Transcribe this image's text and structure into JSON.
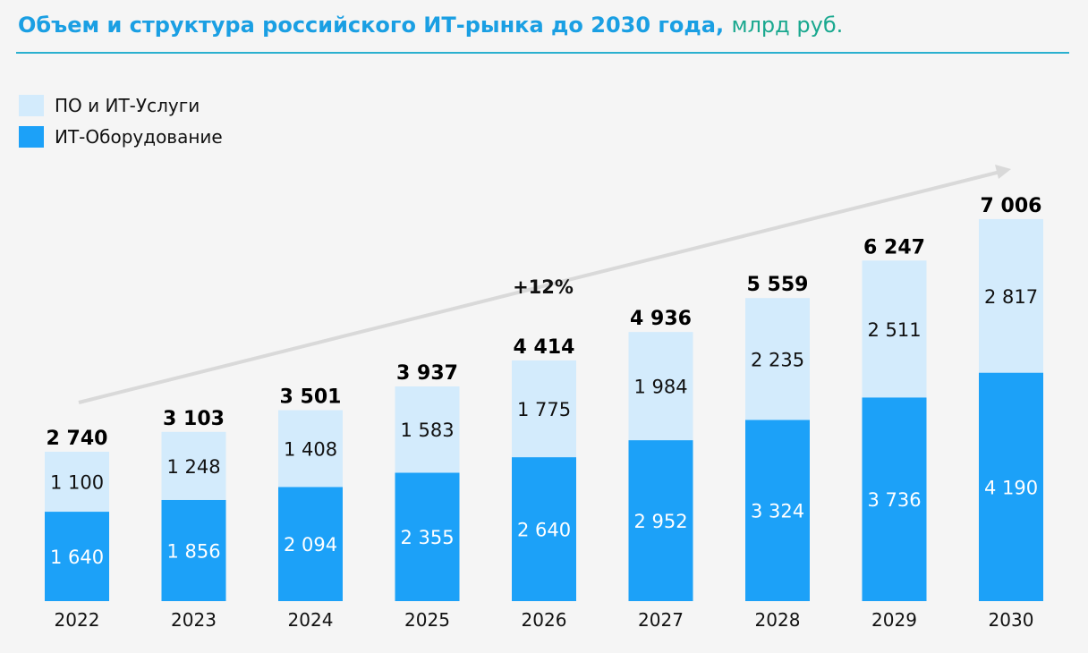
{
  "title": {
    "main": "Объем и структура российского ИТ-рынка до 2030 года,",
    "unit": "млрд руб."
  },
  "colors": {
    "services": "#d3ebfc",
    "hardware": "#1ca1f8",
    "arrow": "#d9d9d9",
    "title": "#1a9fe3"
  },
  "chart_data": {
    "type": "bar",
    "stacked": true,
    "categories": [
      "2022",
      "2023",
      "2024",
      "2025",
      "2026",
      "2027",
      "2028",
      "2029",
      "2030"
    ],
    "series": [
      {
        "name": "ИТ-Оборудование",
        "values": [
          1640,
          1856,
          2094,
          2355,
          2640,
          2952,
          3324,
          3736,
          4190
        ],
        "labels": [
          "1 640",
          "1 856",
          "2 094",
          "2 355",
          "2 640",
          "2 952",
          "3 324",
          "3 736",
          "4 190"
        ]
      },
      {
        "name": "ПО и ИТ-Услуги",
        "values": [
          1100,
          1248,
          1408,
          1583,
          1775,
          1984,
          2235,
          2511,
          2817
        ],
        "labels": [
          "1 100",
          "1 248",
          "1 408",
          "1 583",
          "1 775",
          "1 984",
          "2 235",
          "2 511",
          "2 817"
        ]
      }
    ],
    "totals": [
      2740,
      3103,
      3501,
      3937,
      4414,
      4936,
      5559,
      6247,
      7006
    ],
    "total_labels": [
      "2 740",
      "3 103",
      "3 501",
      "3 937",
      "4 414",
      "4 936",
      "5 559",
      "6 247",
      "7 006"
    ],
    "annotation": "+12%",
    "legend_placement": "top-left",
    "grid": false
  }
}
